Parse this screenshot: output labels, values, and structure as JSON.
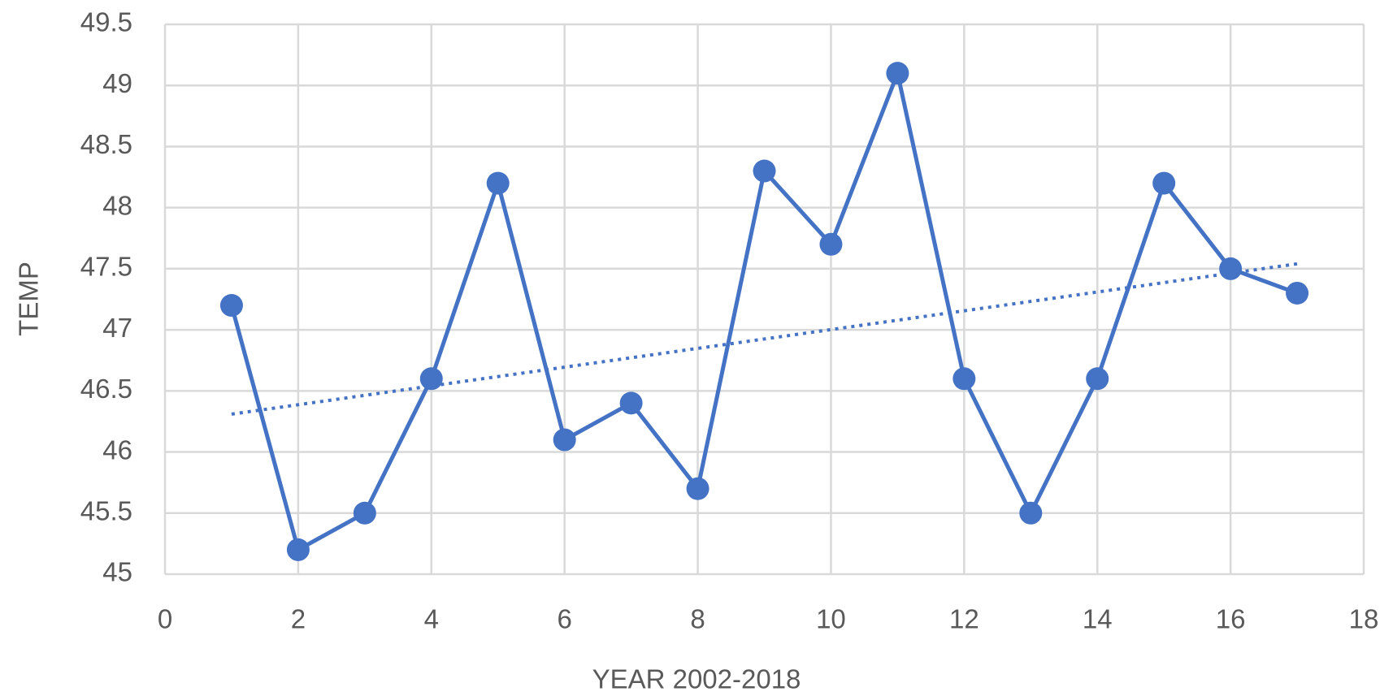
{
  "chart_data": {
    "type": "line",
    "x_label": "YEAR 2002-2018",
    "y_label": "TEMP",
    "x": [
      1,
      2,
      3,
      4,
      5,
      6,
      7,
      8,
      9,
      10,
      11,
      12,
      13,
      14,
      15,
      16,
      17
    ],
    "values": [
      47.2,
      45.2,
      45.5,
      46.6,
      48.2,
      46.1,
      46.4,
      45.7,
      48.3,
      47.7,
      49.1,
      46.6,
      45.5,
      46.6,
      48.2,
      47.5,
      47.3
    ],
    "color": "#4472c4",
    "trendline": {
      "x": [
        1,
        17
      ],
      "values": [
        46.31,
        47.54
      ],
      "style": "dotted"
    },
    "xlim": [
      0,
      18
    ],
    "xticks": [
      0,
      2,
      4,
      6,
      8,
      10,
      12,
      14,
      16,
      18
    ],
    "ylim": [
      45,
      49.5
    ],
    "yticks": [
      45,
      45.5,
      46,
      46.5,
      47,
      47.5,
      48,
      48.5,
      49,
      49.5
    ],
    "grid": true
  }
}
